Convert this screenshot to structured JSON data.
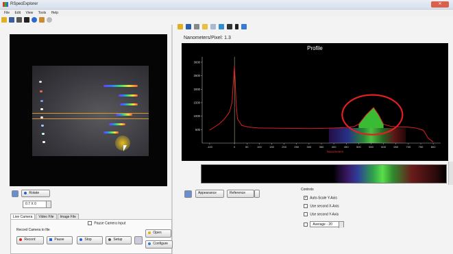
{
  "window": {
    "title": "RSpecExplorer",
    "close_label": "✕"
  },
  "menu": [
    "File",
    "Edit",
    "View",
    "Tools",
    "Help"
  ],
  "colors": {
    "accent": "#d03030",
    "curve": "#e02020",
    "circle": "#e0201e",
    "green_peak": "#3fd03a",
    "led_orange": "#d89a2a"
  },
  "profile": {
    "nm_per_pixel": "Nanometers/Pixel: 1.3",
    "title": "Profile",
    "xlabel": "Nanometers"
  },
  "chart_data": {
    "type": "line",
    "title": "Profile",
    "xlabel": "Nanometers",
    "ylabel": "",
    "x_ticks": [
      "-100",
      "0",
      "50",
      "100",
      "150",
      "200",
      "250",
      "300",
      "350",
      "400",
      "450",
      "500",
      "550",
      "600",
      "650",
      "700",
      "750",
      "800"
    ],
    "y_ticks": [
      "3000",
      "2500",
      "2000",
      "1500",
      "1000",
      "500"
    ],
    "xlim": [
      -130,
      830
    ],
    "ylim": [
      0,
      3200
    ],
    "series": [
      {
        "x": [
          -100,
          -80,
          -60,
          -40,
          -20,
          -10,
          -5,
          0,
          3,
          6,
          12,
          30,
          60,
          100,
          150,
          200,
          250,
          300,
          350,
          400,
          450,
          480,
          500,
          530,
          560,
          580,
          600,
          630,
          660,
          700,
          730,
          760,
          780,
          800
        ],
        "y": [
          480,
          600,
          720,
          900,
          1150,
          1500,
          2200,
          2850,
          2300,
          1600,
          900,
          650,
          590,
          560,
          555,
          550,
          545,
          540,
          545,
          560,
          580,
          610,
          700,
          1050,
          1320,
          1050,
          700,
          620,
          600,
          590,
          560,
          480,
          180,
          40
        ]
      }
    ]
  },
  "camera": {
    "rotate_label": "Rotate",
    "zoom_value": "0.7 X 0",
    "tabs": [
      "Live Camera",
      "Video File",
      "Image File"
    ],
    "pause_input_label": "Pause Camera Input",
    "record_group_label": "Record Camera to file",
    "record_label": "Record",
    "pause_label": "Pause",
    "stop_label": "Stop",
    "setup_label": "Setup",
    "open_label": "Open",
    "configure_label": "Configure"
  },
  "bottom_right": {
    "appearance_label": "Appearance",
    "reference_label": "Reference",
    "controls_title": "Controls",
    "autoscale_label": "Auto-Scale Y-Axis",
    "second_x_label": "Use second X-Axis",
    "second_y_label": "Use second Y-Axis",
    "average_value": "Average - 20"
  }
}
